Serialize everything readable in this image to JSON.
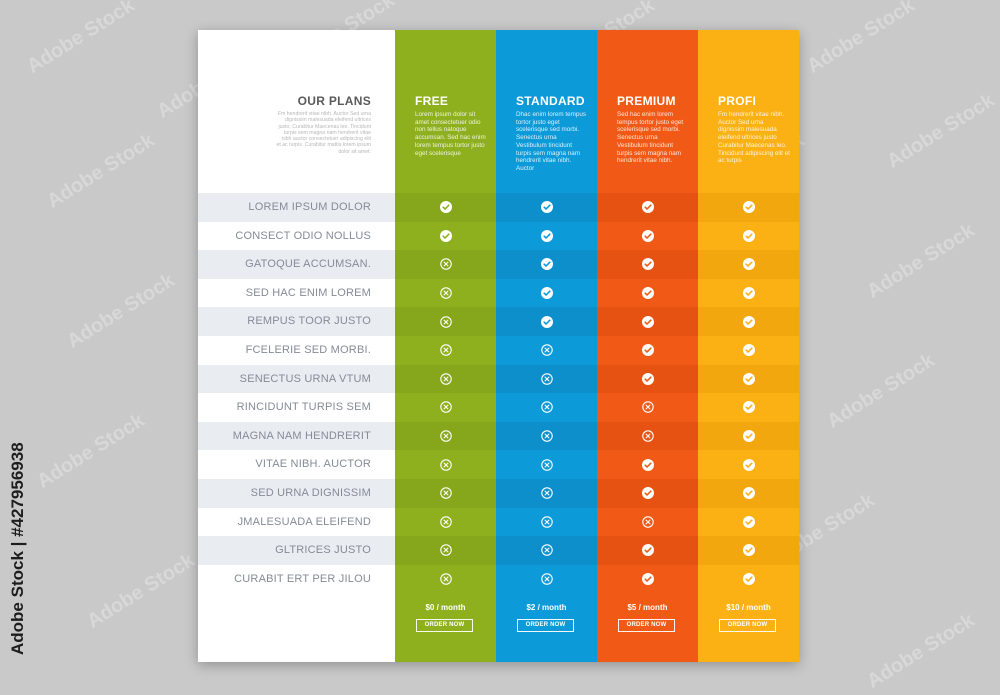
{
  "left": {
    "title": "OUR PLANS",
    "description": "Fm hendrerit vitae nibh. Auctor Sed urna dignissim malesuada eleifend ultrices justo. Curabitur Maecenas leo. Tincidunt turpis sem magna nam hendrerit vitae nibh auctor consectetuer adipiscing elit et ac turpis. Curabitur mattis lorem ipsum dolor sit amet."
  },
  "features": [
    "LOREM IPSUM DOLOR",
    "CONSECT ODIO NOLLUS",
    "GATOQUE ACCUMSAN.",
    "SED HAC ENIM LOREM",
    "REMPUS TOOR JUSTO",
    "FCELERIE SED MORBI.",
    "SENECTUS URNA VTUM",
    "RINCIDUNT TURPIS SEM",
    "MAGNA NAM HENDRERIT",
    "VITAE NIBH. AUCTOR",
    "SED URNA DIGNISSIM",
    "JMALESUADA ELEIFEND",
    "GLTRICES JUSTO",
    "CURABIT ERT PER JILOU"
  ],
  "plans": [
    {
      "name": "FREE",
      "description": "Lorem ipsum dolor sit amet consectetuer odio non tellus natoque accumsan. Sed hac enim lorem tempus tortor justo eget scelerisque",
      "price": "$0 / month",
      "button": "ORDER NOW",
      "color": "#8fb01e",
      "color_alt": "#86a61b",
      "included": [
        true,
        true,
        false,
        false,
        false,
        false,
        false,
        false,
        false,
        false,
        false,
        false,
        false,
        false
      ]
    },
    {
      "name": "STANDARD",
      "description": "Dhac enim lorem tempus tortor justo eget scelerisque sed morbi. Senectus urna Vestibulum tincidunt turpis sem magna nam hendrerit vitae nibh. Auctor",
      "price": "$2 / month",
      "button": "ORDER NOW",
      "color": "#0d9ad8",
      "color_alt": "#0c8fca",
      "included": [
        true,
        true,
        true,
        true,
        true,
        false,
        false,
        false,
        false,
        false,
        false,
        false,
        false,
        false
      ]
    },
    {
      "name": "PREMIUM",
      "description": "Sed hac enim lorem tempus tortor justo eget scelerisque sed morbi. Senectus urna Vestibulum tincidunt turpis sem magna nam hendrerit vitae nibh.",
      "price": "$5 / month",
      "button": "ORDER NOW",
      "color": "#f15a16",
      "color_alt": "#e65212",
      "included": [
        true,
        true,
        true,
        true,
        true,
        true,
        true,
        false,
        false,
        true,
        true,
        false,
        true,
        true
      ]
    },
    {
      "name": "PROFI",
      "description": "Fm hendrerit vitae nibh. Auctor Sed urna dignissim malesuada eleifend ultrices justo Curabitur Maecenas leo. Tincidunt adipiscing elit et ac turpis",
      "price": "$10 / month",
      "button": "ORDER NOW",
      "color": "#fbb014",
      "color_alt": "#f2a70f",
      "included": [
        true,
        true,
        true,
        true,
        true,
        true,
        true,
        true,
        true,
        true,
        true,
        true,
        true,
        true
      ]
    }
  ],
  "watermark": {
    "side_text": "Adobe Stock | #427956938",
    "pattern_text": "Adobe Stock"
  }
}
